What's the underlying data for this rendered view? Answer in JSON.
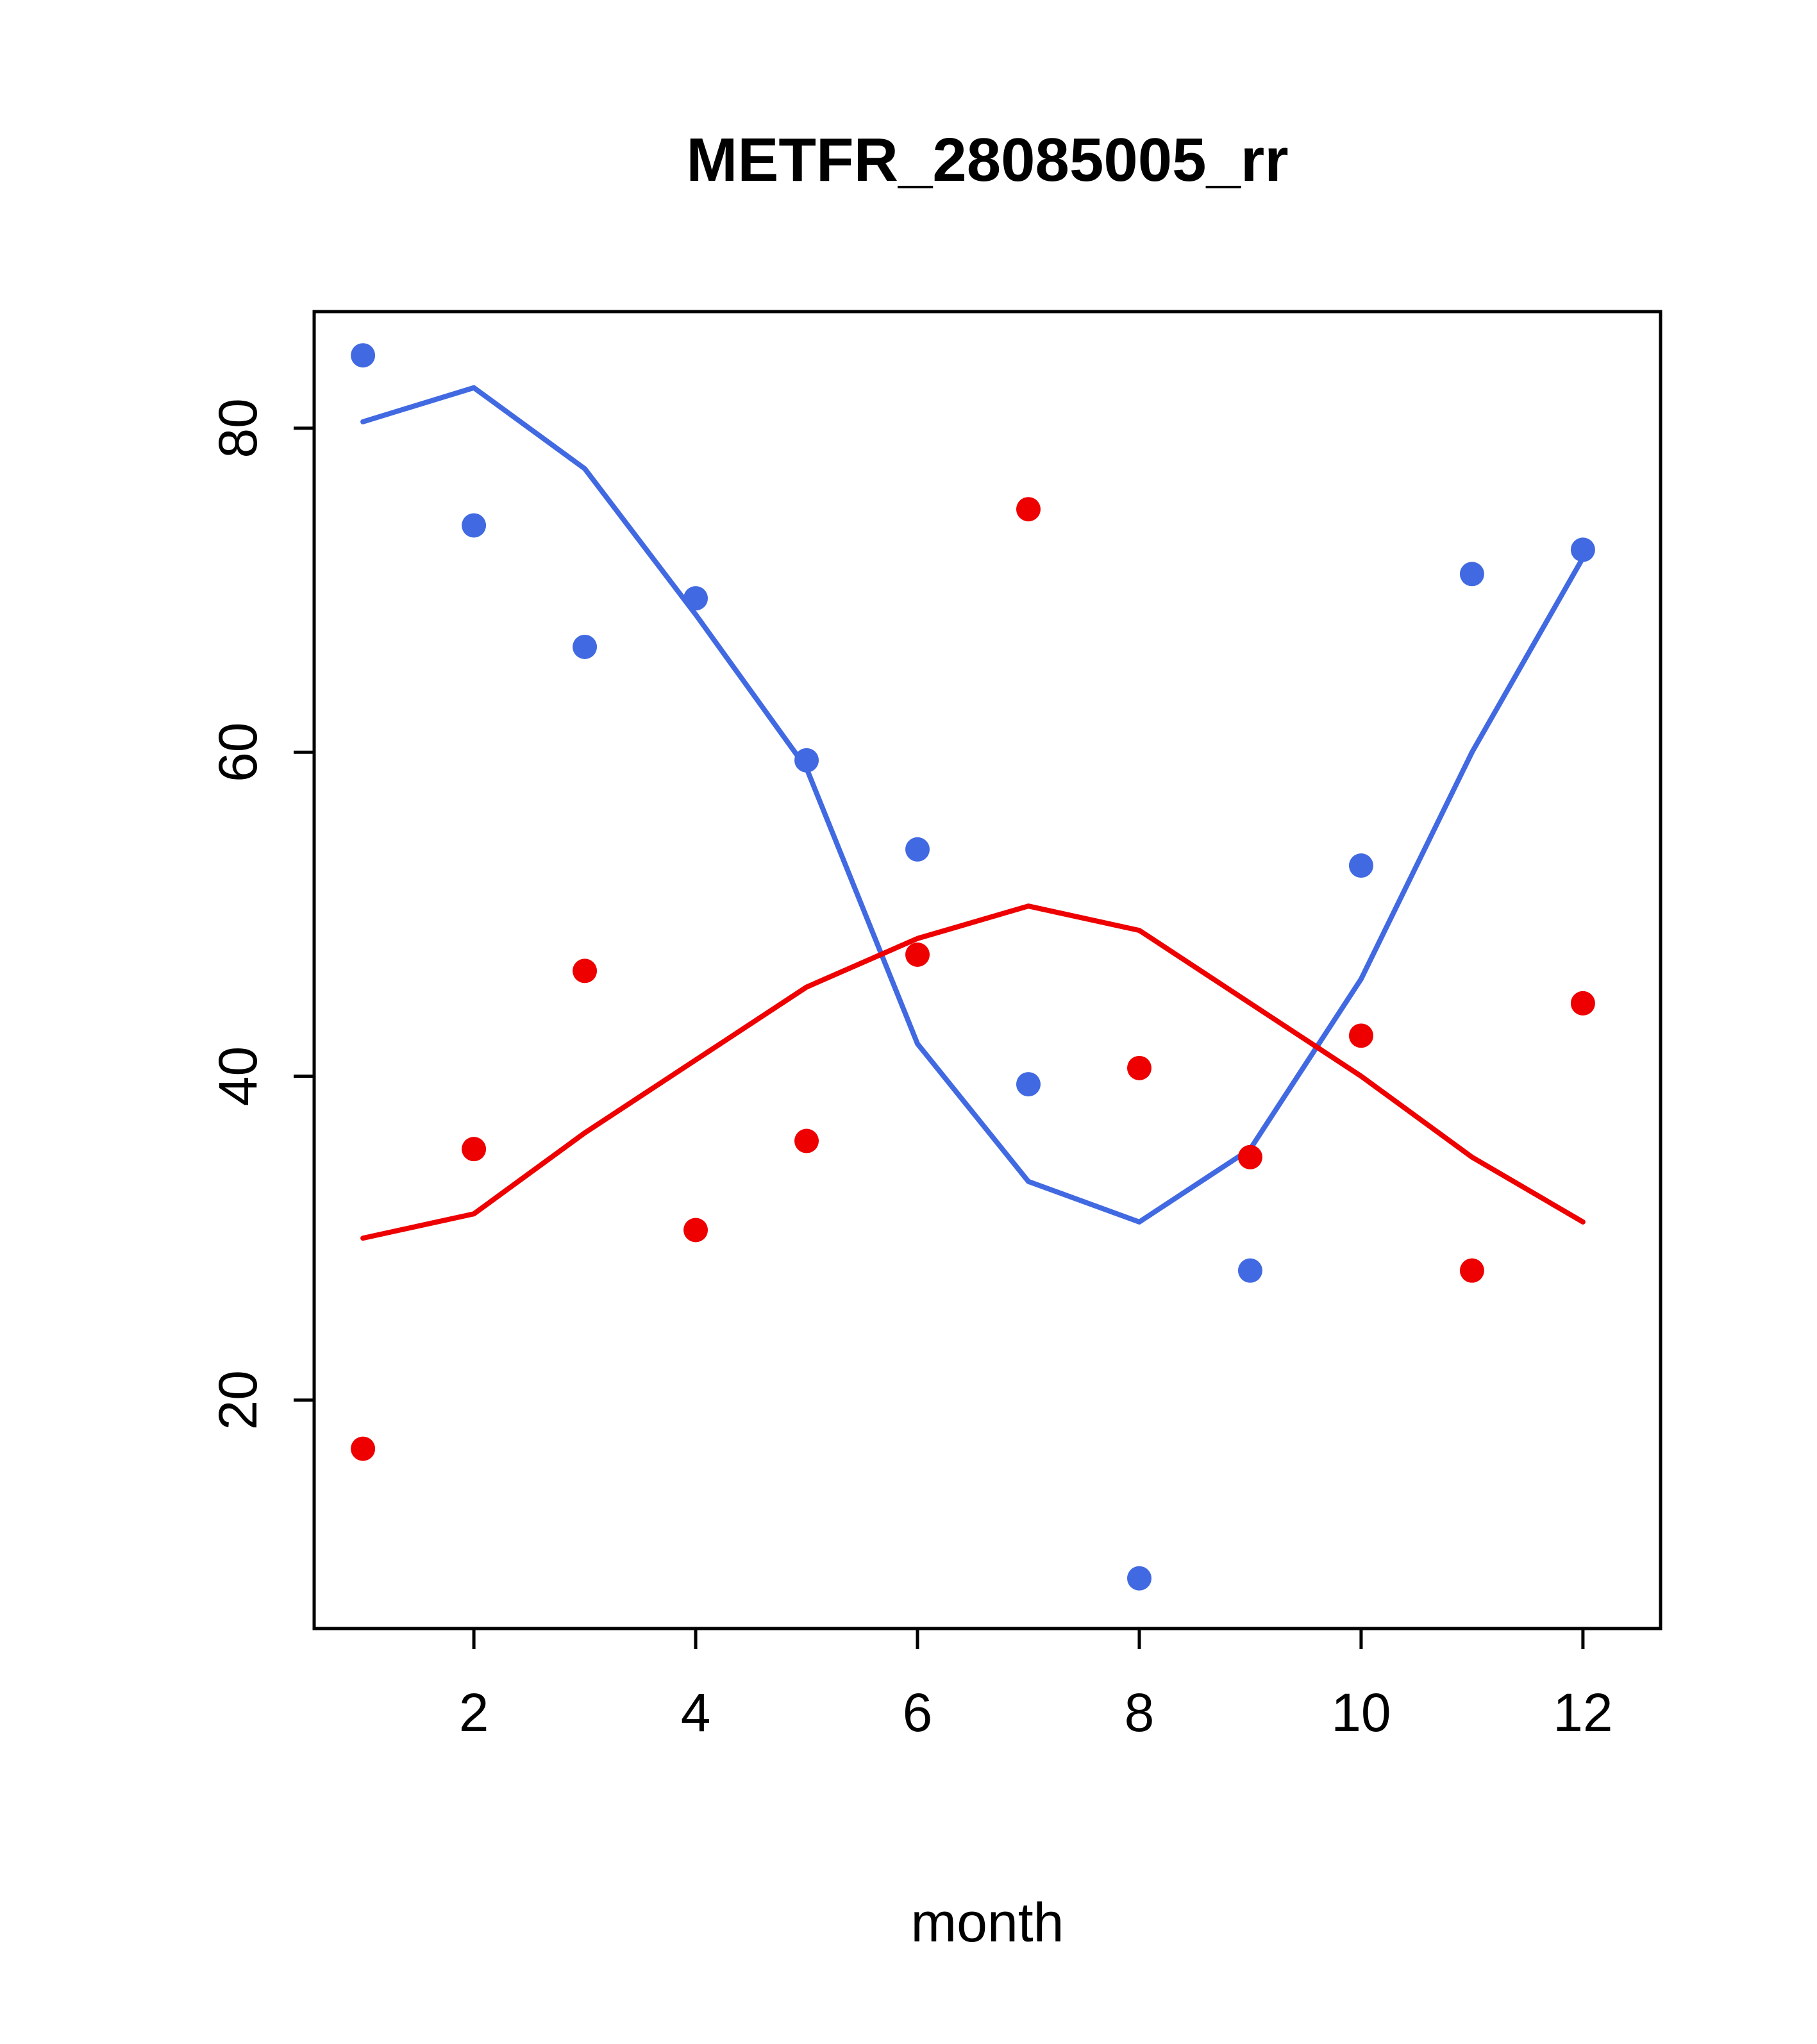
{
  "chart_data": {
    "type": "scatter",
    "title": "METFR_28085005_rr",
    "xlabel": "month",
    "ylabel": "",
    "xlim": [
      0.56,
      12.7
    ],
    "ylim": [
      5.9,
      87.2
    ],
    "xticks": [
      2,
      4,
      6,
      8,
      10,
      12
    ],
    "yticks": [
      20,
      40,
      60,
      80
    ],
    "grid": false,
    "legend": "none",
    "x": [
      1,
      2,
      3,
      4,
      5,
      6,
      7,
      8,
      9,
      10,
      11,
      12
    ],
    "series": [
      {
        "name": "blue-line",
        "kind": "line",
        "color": "#4169e1",
        "values": [
          80.4,
          82.5,
          77.5,
          68.5,
          59,
          42,
          33.5,
          31,
          35.5,
          46,
          60,
          72
        ]
      },
      {
        "name": "red-line",
        "kind": "line",
        "color": "#ee0000",
        "values": [
          30,
          31.5,
          36.5,
          41,
          45.5,
          48.5,
          50.5,
          49,
          44.5,
          40,
          35,
          31
        ]
      },
      {
        "name": "blue-points",
        "kind": "points",
        "color": "#4169e1",
        "values": [
          84.5,
          74,
          66.5,
          69.5,
          59.5,
          54,
          39.5,
          9,
          28,
          53,
          71,
          72.5
        ]
      },
      {
        "name": "red-points",
        "kind": "points",
        "color": "#ee0000",
        "values": [
          17,
          35.5,
          46.5,
          30.5,
          36,
          47.5,
          75,
          40.5,
          35,
          42.5,
          28,
          44.5
        ]
      }
    ]
  }
}
